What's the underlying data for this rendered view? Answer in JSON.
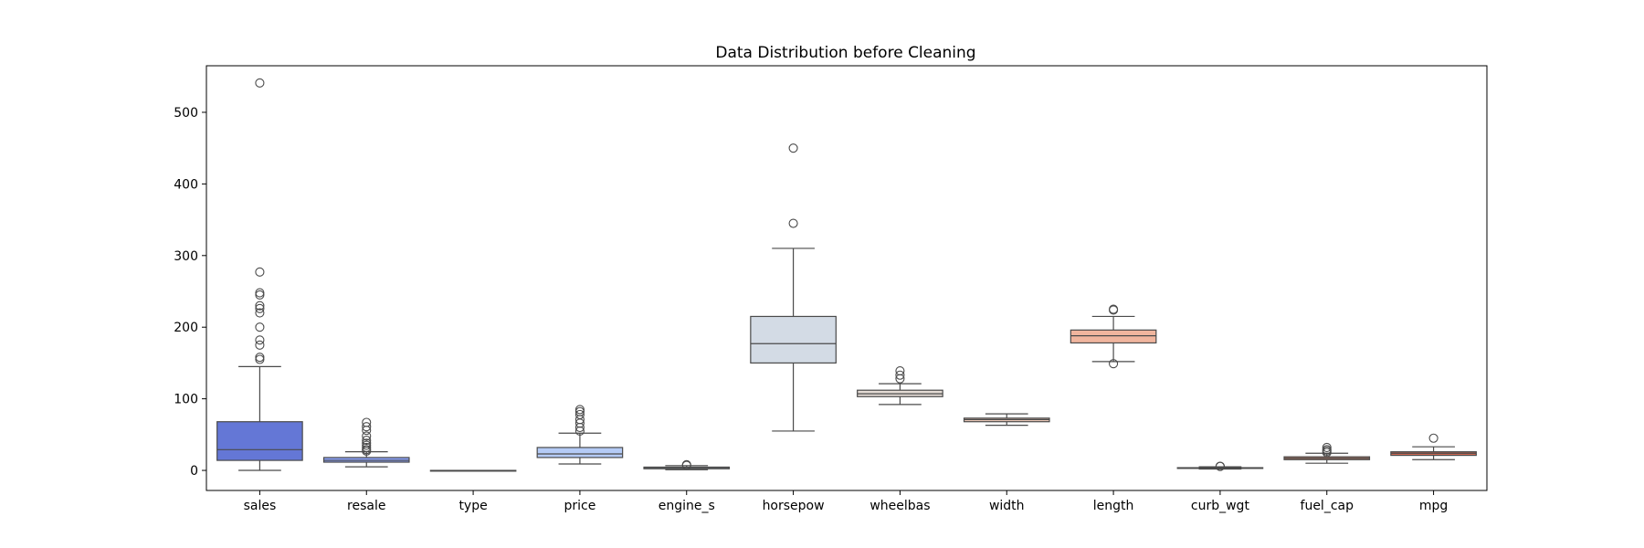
{
  "chart_data": {
    "type": "box",
    "title": "Data Distribution before Cleaning",
    "xlabel": "",
    "ylabel": "",
    "ylim": [
      -28,
      565
    ],
    "yticks": [
      0,
      100,
      200,
      300,
      400,
      500
    ],
    "ytick_labels": [
      "0",
      "100",
      "200",
      "300",
      "400",
      "500"
    ],
    "grid": false,
    "legend": "none",
    "box_stroke": "#4a4a4a",
    "series": [
      {
        "name": "sales",
        "color": "#6477d6",
        "whislo": 0.1,
        "q1": 14,
        "median": 29,
        "q3": 68,
        "whishi": 145,
        "fliers": [
          155,
          158,
          175,
          182,
          200,
          220,
          226,
          230,
          245,
          248,
          277,
          541
        ]
      },
      {
        "name": "resale",
        "color": "#8aa0f4",
        "whislo": 5,
        "q1": 11.5,
        "median": 14,
        "q3": 18,
        "whishi": 26,
        "fliers": [
          27,
          29,
          32,
          35,
          38,
          42,
          48,
          56,
          61,
          67
        ]
      },
      {
        "name": "type",
        "color": "#a9c1fa",
        "whislo": 0,
        "q1": 0,
        "median": 0,
        "q3": 0,
        "whishi": 0,
        "fliers": []
      },
      {
        "name": "price",
        "color": "#b5cbf6",
        "whislo": 9,
        "q1": 18,
        "median": 23,
        "q3": 32,
        "whishi": 52,
        "fliers": [
          55,
          60,
          66,
          71,
          78,
          82,
          85
        ]
      },
      {
        "name": "engine_s",
        "color": "#c5d4ec",
        "whislo": 1,
        "q1": 2.3,
        "median": 3,
        "q3": 4.6,
        "whishi": 6.7,
        "fliers": [
          7,
          8
        ]
      },
      {
        "name": "horsepow",
        "color": "#d3dbe5",
        "whislo": 55,
        "q1": 150,
        "median": 177,
        "q3": 215,
        "whishi": 310,
        "fliers": [
          345,
          450
        ]
      },
      {
        "name": "wheelbas",
        "color": "#e3dad4",
        "whislo": 92,
        "q1": 103,
        "median": 107,
        "q3": 112,
        "whishi": 121,
        "fliers": [
          128,
          133,
          139
        ]
      },
      {
        "name": "width",
        "color": "#eac7b6",
        "whislo": 63,
        "q1": 68,
        "median": 71,
        "q3": 73,
        "whishi": 79,
        "fliers": []
      },
      {
        "name": "length",
        "color": "#f0b59e",
        "whislo": 152,
        "q1": 178,
        "median": 188,
        "q3": 196,
        "whishi": 215,
        "fliers": [
          149,
          224,
          225
        ]
      },
      {
        "name": "curb_wgt",
        "color": "#eea48a",
        "whislo": 1.9,
        "q1": 3,
        "median": 3.3,
        "q3": 3.8,
        "whishi": 5,
        "fliers": [
          5.5,
          5.8
        ]
      },
      {
        "name": "fuel_cap",
        "color": "#e28a70",
        "whislo": 10,
        "q1": 15,
        "median": 17,
        "q3": 19,
        "whishi": 24,
        "fliers": [
          25,
          27,
          29,
          32
        ]
      },
      {
        "name": "mpg",
        "color": "#d36a55",
        "whislo": 15,
        "q1": 21,
        "median": 24,
        "q3": 26,
        "whishi": 33,
        "fliers": [
          45
        ]
      }
    ]
  }
}
